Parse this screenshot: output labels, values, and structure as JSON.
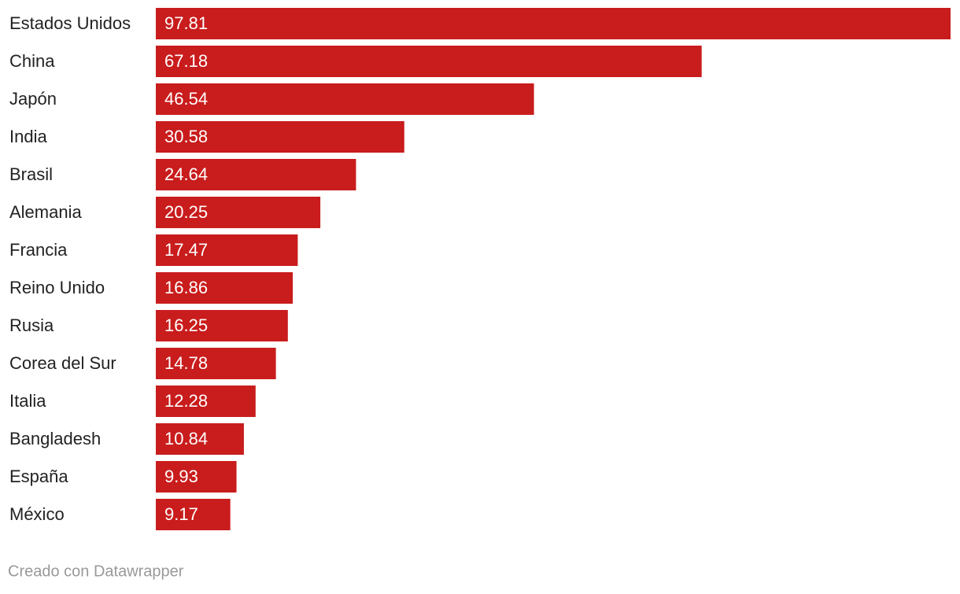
{
  "chart_data": {
    "type": "bar",
    "orientation": "horizontal",
    "categories": [
      "Estados Unidos",
      "China",
      "Japón",
      "India",
      "Brasil",
      "Alemania",
      "Francia",
      "Reino Unido",
      "Rusia",
      "Corea del Sur",
      "Italia",
      "Bangladesh",
      "España",
      "México"
    ],
    "values": [
      97.81,
      67.18,
      46.54,
      30.58,
      24.64,
      20.25,
      17.47,
      16.86,
      16.25,
      14.78,
      12.28,
      10.84,
      9.93,
      9.17
    ],
    "color": "#c91c1c",
    "footer": "Creado con Datawrapper"
  }
}
